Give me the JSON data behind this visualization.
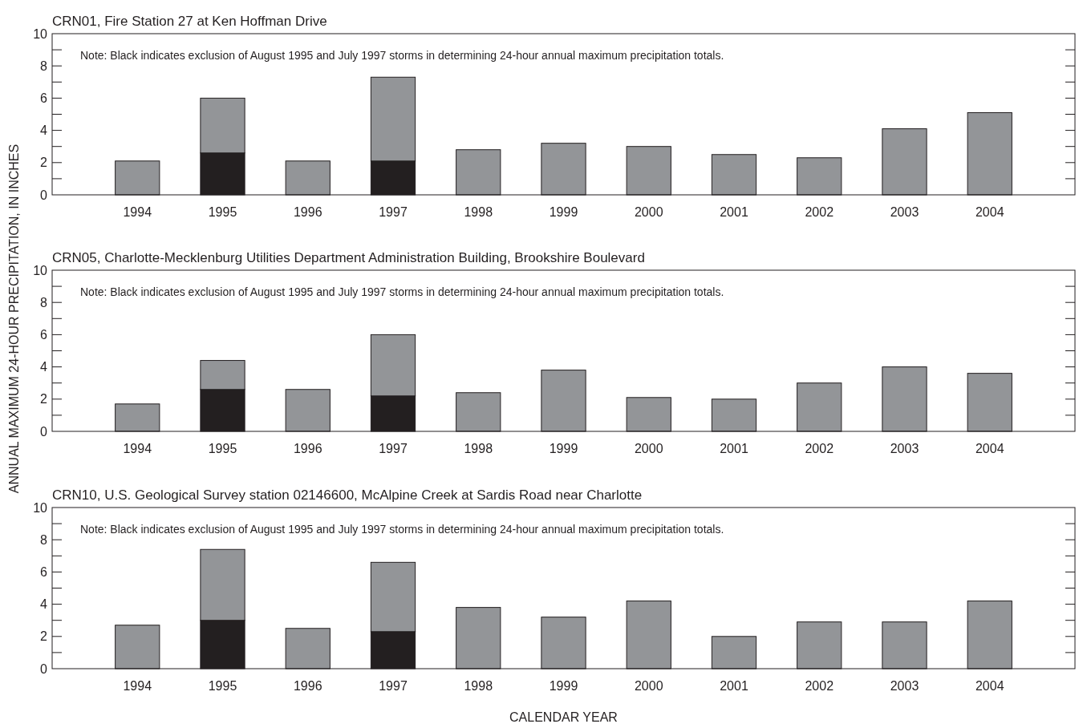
{
  "chart_data": [
    {
      "type": "bar",
      "title": "CRN01, Fire Station 27 at Ken Hoffman Drive",
      "stacked": true,
      "categories": [
        "1994",
        "1995",
        "1996",
        "1997",
        "1998",
        "1999",
        "2000",
        "2001",
        "2002",
        "2003",
        "2004"
      ],
      "series": [
        {
          "color": "#231f20",
          "values": [
            null,
            2.6,
            null,
            2.1,
            null,
            null,
            null,
            null,
            null,
            null,
            null
          ]
        },
        {
          "color": "#939598",
          "values": [
            2.1,
            3.4,
            2.1,
            5.2,
            2.8,
            3.2,
            3.0,
            2.5,
            2.3,
            4.1,
            5.1
          ]
        }
      ],
      "ylim": [
        0,
        10
      ],
      "yticks": [
        0,
        {
          "value": 1,
          "label": null
        },
        2,
        {
          "value": 3,
          "label": null
        },
        4,
        {
          "value": 5,
          "label": null
        },
        6,
        {
          "value": 7,
          "label": null
        },
        8,
        {
          "value": 9,
          "label": null
        },
        10
      ],
      "annotations": [
        "Note: Black indicates exclusion of August 1995 and July 1997 storms in determining 24-hour annual maximum precipitation totals."
      ]
    },
    {
      "type": "bar",
      "title": "CRN05, Charlotte-Mecklenburg Utilities Department Administration Building, Brookshire Boulevard",
      "ylabel": "ANNUAL MAXIMUM 24-HOUR PRECIPITATION, IN INCHES",
      "stacked": true,
      "categories": [
        "1994",
        "1995",
        "1996",
        "1997",
        "1998",
        "1999",
        "2000",
        "2001",
        "2002",
        "2003",
        "2004"
      ],
      "series": [
        {
          "color": "#231f20",
          "values": [
            null,
            2.6,
            null,
            2.2,
            null,
            null,
            null,
            null,
            null,
            null,
            null
          ]
        },
        {
          "color": "#939598",
          "values": [
            1.7,
            1.8,
            2.6,
            3.8,
            2.4,
            3.8,
            2.1,
            2.0,
            3.0,
            4.0,
            3.6
          ]
        }
      ],
      "ylim": [
        0,
        10
      ],
      "yticks": [
        0,
        {
          "value": 1,
          "label": null
        },
        2,
        {
          "value": 3,
          "label": null
        },
        4,
        {
          "value": 5,
          "label": null
        },
        6,
        {
          "value": 7,
          "label": null
        },
        8,
        {
          "value": 9,
          "label": null
        },
        10
      ],
      "annotations": [
        "Note: Black indicates exclusion of August 1995 and July 1997 storms in determining 24-hour annual maximum precipitation totals."
      ]
    },
    {
      "type": "bar",
      "title": "CRN10, U.S. Geological Survey station 02146600, McAlpine Creek at Sardis Road near Charlotte",
      "xlabel": "CALENDAR YEAR",
      "stacked": true,
      "categories": [
        "1994",
        "1995",
        "1996",
        "1997",
        "1998",
        "1999",
        "2000",
        "2001",
        "2002",
        "2003",
        "2004"
      ],
      "series": [
        {
          "color": "#231f20",
          "values": [
            null,
            3.0,
            null,
            2.3,
            null,
            null,
            null,
            null,
            null,
            null,
            null
          ]
        },
        {
          "color": "#939598",
          "values": [
            2.7,
            4.4,
            2.5,
            4.3,
            3.8,
            3.2,
            4.2,
            2.0,
            2.9,
            2.9,
            4.2
          ]
        }
      ],
      "ylim": [
        0,
        10
      ],
      "yticks": [
        0,
        {
          "value": 1,
          "label": null
        },
        2,
        {
          "value": 3,
          "label": null
        },
        4,
        {
          "value": 5,
          "label": null
        },
        6,
        {
          "value": 7,
          "label": null
        },
        8,
        {
          "value": 9,
          "label": null
        },
        10
      ],
      "annotations": [
        "Note: Black indicates exclusion of August 1995 and July 1997 storms in determining 24-hour annual maximum precipitation totals."
      ]
    }
  ]
}
